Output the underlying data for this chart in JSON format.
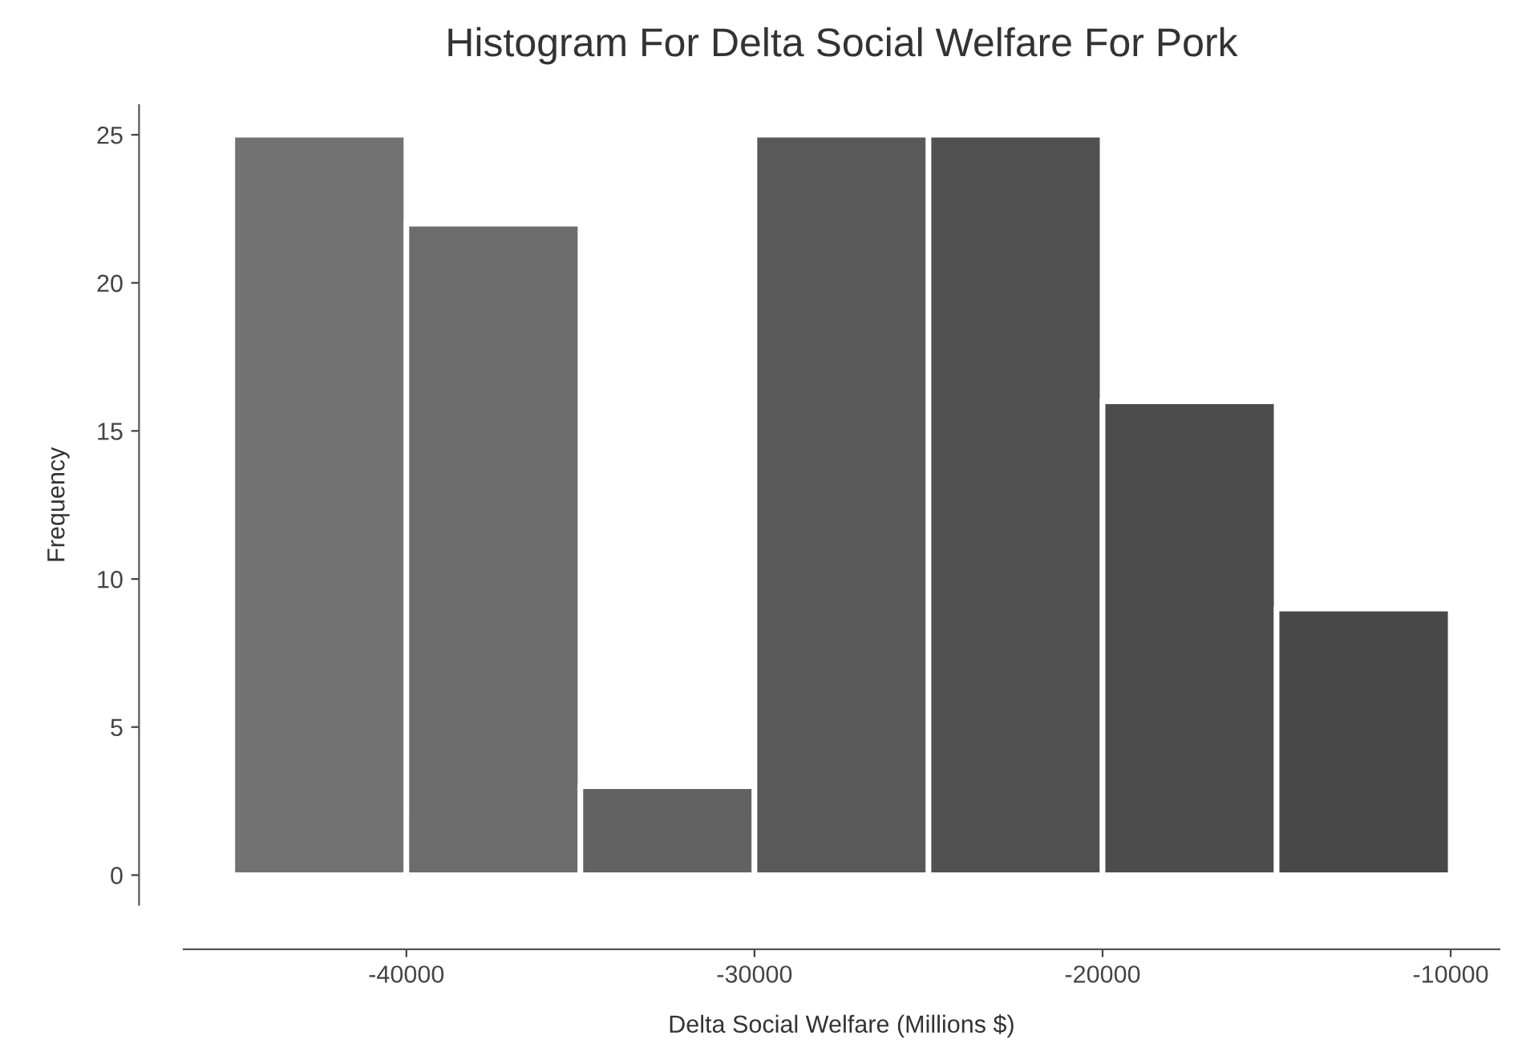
{
  "chart_data": {
    "type": "histogram",
    "title": "Histogram For Delta Social Welfare For Pork",
    "xlabel": "Delta Social Welfare (Millions $)",
    "ylabel": "Frequency",
    "bins": [
      -45000,
      -40000,
      -35000,
      -30000,
      -25000,
      -20000,
      -15000,
      -10000
    ],
    "values": [
      25,
      22,
      3,
      25,
      25,
      16,
      9
    ],
    "colors": [
      "#727272",
      "#6c6c6c",
      "#626262",
      "#595959",
      "#505050",
      "#4c4c4c",
      "#484848"
    ],
    "xticks": [
      -40000,
      -30000,
      -20000,
      -10000
    ],
    "yticks": [
      0,
      5,
      10,
      15,
      20,
      25
    ],
    "xlim": [
      -46400,
      -8600
    ],
    "ylim": [
      -1,
      26
    ],
    "grid": false
  }
}
